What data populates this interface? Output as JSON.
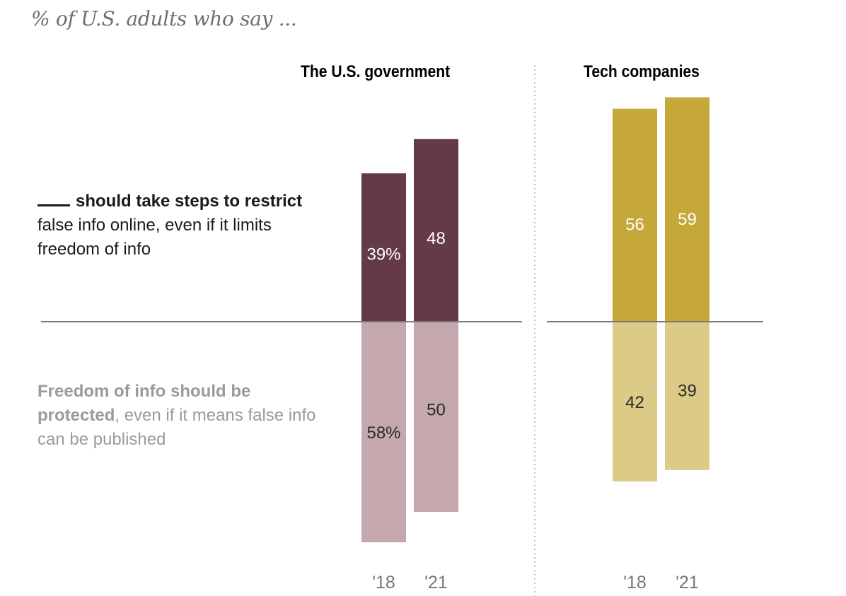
{
  "subtitle": "% of U.S. adults who say ...",
  "labels": {
    "restrict": {
      "blank": "",
      "bold": "should take steps to restrict",
      "rest": " false info online, even if it limits freedom of info"
    },
    "freedom": {
      "bold": "Freedom of info should be protected",
      "rest": ", even if it means false info can be published"
    }
  },
  "colors": {
    "gov_dark": "#633a45",
    "gov_light": "#c5a8ad",
    "tech_dark": "#c6a73a",
    "tech_light": "#dccb86",
    "baseline": "#7a7a7a",
    "divider": "#aaaaaa"
  },
  "chart_data": {
    "type": "bar",
    "subtype": "diverging",
    "title": "% of U.S. adults who say ...",
    "categories": [
      "'18",
      "'21"
    ],
    "panels": [
      {
        "name": "The U.S. government",
        "series": [
          {
            "name": "___ should take steps to restrict false info online, even if it limits freedom of info",
            "direction": "up",
            "values": [
              39,
              48
            ],
            "labels": [
              "39%",
              "48"
            ]
          },
          {
            "name": "Freedom of info should be protected, even if it means false info can be published",
            "direction": "down",
            "values": [
              58,
              50
            ],
            "labels": [
              "58%",
              "50"
            ]
          }
        ]
      },
      {
        "name": "Tech companies",
        "series": [
          {
            "name": "___ should take steps to restrict false info online, even if it limits freedom of info",
            "direction": "up",
            "values": [
              56,
              59
            ],
            "labels": [
              "56",
              "59"
            ]
          },
          {
            "name": "Freedom of info should be protected, even if it means false info can be published",
            "direction": "down",
            "values": [
              42,
              39
            ],
            "labels": [
              "42",
              "39"
            ]
          }
        ]
      }
    ],
    "xlabel": "",
    "ylabel": "",
    "grid": false,
    "legend": "left-side text labels"
  }
}
